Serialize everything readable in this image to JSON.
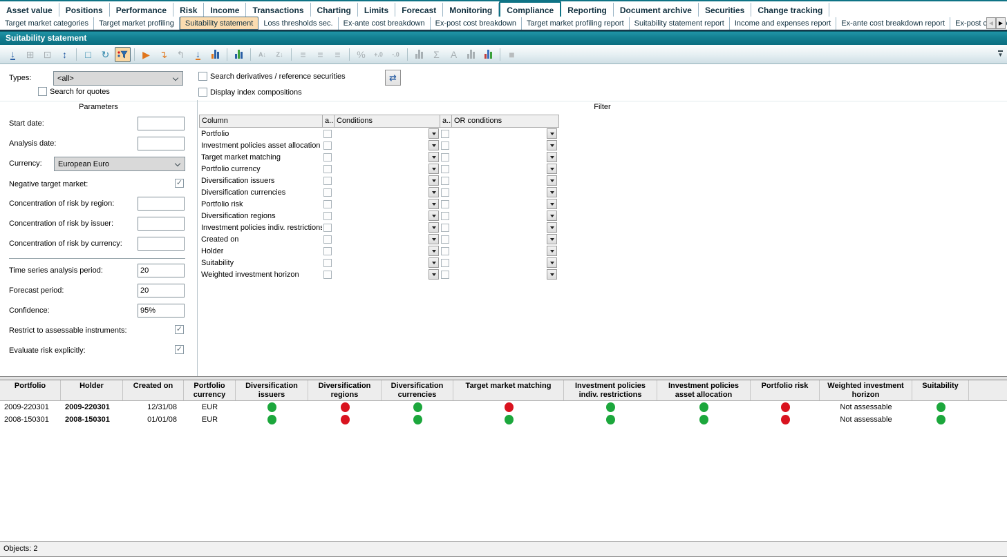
{
  "title": "Suitability statement",
  "main_tabs": {
    "selected": "Compliance",
    "items": [
      "Asset value",
      "Positions",
      "Performance",
      "Risk",
      "Income",
      "Transactions",
      "Charting",
      "Limits",
      "Forecast",
      "Monitoring",
      "Compliance",
      "Reporting",
      "Document archive",
      "Securities",
      "Change tracking"
    ]
  },
  "sub_tabs": {
    "selected": "Suitability statement",
    "items": [
      "Target market categories",
      "Target market profiling",
      "Suitability statement",
      "Loss thresholds sec.",
      "Ex-ante cost breakdown",
      "Ex-post cost breakdown",
      "Target market profiling report",
      "Suitability statement report",
      "Income and expenses report",
      "Ex-ante cost breakdown report",
      "Ex-post cost bre"
    ],
    "scroll_left_icon": "chevron-left",
    "scroll_right_icon": "chevron-right"
  },
  "toolbar": {
    "icons": [
      {
        "name": "export-icon",
        "glyph": "↓",
        "color": "#2a5fa5",
        "underline": "blue",
        "state": "enabled"
      },
      {
        "name": "maximize-icon",
        "glyph": "⊞",
        "color": "#a8b0b4",
        "state": "disabled"
      },
      {
        "name": "restore-icon",
        "glyph": "⊡",
        "color": "#a8b0b4",
        "state": "disabled"
      },
      {
        "name": "fit-height-icon",
        "glyph": "↕",
        "color": "#2a5fa5",
        "state": "enabled"
      },
      {
        "sep": true
      },
      {
        "name": "new-layout-icon",
        "glyph": "□",
        "color": "#2e86ab",
        "state": "enabled"
      },
      {
        "name": "refresh-icon",
        "glyph": "↻",
        "color": "#2e86ab",
        "state": "enabled"
      },
      {
        "name": "filter-icon",
        "type": "funnel",
        "state": "active"
      },
      {
        "sep": true
      },
      {
        "name": "step-forward-icon",
        "glyph": "▶",
        "color": "#e0761c",
        "state": "enabled"
      },
      {
        "name": "step-into-icon",
        "glyph": "↴",
        "color": "#e0761c",
        "state": "enabled"
      },
      {
        "name": "step-out-icon",
        "glyph": "↰",
        "color": "#a8b0b4",
        "state": "disabled"
      },
      {
        "name": "drilldown-icon",
        "glyph": "↓",
        "color": "#2a5fa5",
        "underline": "orange",
        "state": "enabled"
      },
      {
        "name": "chart-drill-icon",
        "type": "bars",
        "bar_colors": [
          "#e0761c",
          "#2a5fa5",
          "#2a5fa5"
        ],
        "state": "enabled"
      },
      {
        "sep": true
      },
      {
        "name": "distribution-icon",
        "type": "bars",
        "bar_colors": [
          "#2a5fa5",
          "#3aa03a",
          "#2a5fa5"
        ],
        "state": "enabled"
      },
      {
        "sep": true
      },
      {
        "name": "sort-asc-icon",
        "glyph": "A↓",
        "color": "#a8b0b4",
        "small": true,
        "state": "disabled"
      },
      {
        "name": "sort-desc-icon",
        "glyph": "Z↓",
        "color": "#a8b0b4",
        "small": true,
        "state": "disabled"
      },
      {
        "sep": true
      },
      {
        "name": "align-left-icon",
        "glyph": "≡",
        "color": "#a8b0b4",
        "state": "disabled"
      },
      {
        "name": "align-center-icon",
        "glyph": "≡",
        "color": "#a8b0b4",
        "state": "disabled"
      },
      {
        "name": "align-right-icon",
        "glyph": "≡",
        "color": "#a8b0b4",
        "state": "disabled"
      },
      {
        "sep": true
      },
      {
        "name": "percent-icon",
        "glyph": "%",
        "color": "#a8b0b4",
        "state": "disabled"
      },
      {
        "name": "add-decimals-icon",
        "glyph": "+.0",
        "color": "#a8b0b4",
        "small": true,
        "state": "disabled"
      },
      {
        "name": "remove-decimals-icon",
        "glyph": "-.0",
        "color": "#a8b0b4",
        "small": true,
        "state": "disabled"
      },
      {
        "sep": true
      },
      {
        "name": "row-bars-icon",
        "type": "bars",
        "bar_colors": [
          "#a8b0b4",
          "#a8b0b4",
          "#a8b0b4"
        ],
        "state": "disabled"
      },
      {
        "name": "sum-icon",
        "glyph": "Σ",
        "color": "#a8b0b4",
        "state": "disabled"
      },
      {
        "name": "font-icon",
        "glyph": "A",
        "color": "#a8b0b4",
        "state": "disabled"
      },
      {
        "name": "bars-icon",
        "type": "bars",
        "bar_colors": [
          "#a8b0b4",
          "#a8b0b4",
          "#a8b0b4"
        ],
        "state": "disabled"
      },
      {
        "name": "chart-icon",
        "type": "bars",
        "bar_colors": [
          "#c04040",
          "#3a6fbf",
          "#3aa03a"
        ],
        "state": "enabled"
      },
      {
        "sep": true
      },
      {
        "name": "stop-icon",
        "glyph": "■",
        "color": "#b8bcbe",
        "state": "disabled"
      }
    ],
    "overflow_icon": "toolbar-overflow-chevron"
  },
  "search_form": {
    "types_label": "Types:",
    "types_value": "<all>",
    "search_quotes_label": "Search for quotes",
    "search_quotes_checked": false,
    "search_derivatives_label": "Search derivatives / reference securities",
    "search_derivatives_checked": false,
    "display_index_label": "Display index compositions",
    "display_index_checked": false,
    "refresh_button_icon": "refresh-arrows"
  },
  "parameters": {
    "heading": "Parameters",
    "fields": [
      {
        "label": "Start date:",
        "control": "input",
        "value": ""
      },
      {
        "label": "Analysis date:",
        "control": "input",
        "value": ""
      },
      {
        "label": "Currency:",
        "control": "combo",
        "value": "European Euro"
      },
      {
        "label": "Negative target market:",
        "control": "checkbox",
        "checked": true
      },
      {
        "label": "Concentration of risk by region:",
        "control": "input",
        "value": ""
      },
      {
        "label": "Concentration of risk by issuer:",
        "control": "input",
        "value": ""
      },
      {
        "label": "Concentration of risk by currency:",
        "control": "input",
        "value": ""
      },
      {
        "divider": true
      },
      {
        "label": "Time series analysis period:",
        "control": "input",
        "value": "20"
      },
      {
        "label": "Forecast period:",
        "control": "input",
        "value": "20"
      },
      {
        "label": "Confidence:",
        "control": "input",
        "value": "95%"
      },
      {
        "label": "Restrict to assessable instruments:",
        "control": "checkbox",
        "checked": true
      },
      {
        "label": "Evaluate risk explicitly:",
        "control": "checkbox",
        "checked": true
      }
    ]
  },
  "filter": {
    "heading": "Filter",
    "headers": [
      "Column",
      "a..",
      "Conditions",
      "a..",
      "OR conditions"
    ],
    "rows": [
      "Portfolio",
      "Investment policies asset allocation",
      "Target market matching",
      "Portfolio currency",
      "Diversification issuers",
      "Diversification currencies",
      "Portfolio risk",
      "Diversification regions",
      "Investment policies indiv. restrictions",
      "Created on",
      "Holder",
      "Suitability",
      "Weighted investment horizon"
    ]
  },
  "results": {
    "columns": [
      {
        "key": "portfolio",
        "label": "Portfolio",
        "type": "text",
        "align": "left"
      },
      {
        "key": "holder",
        "label": "Holder",
        "type": "text",
        "align": "left",
        "bold": true
      },
      {
        "key": "created_on",
        "label": "Created on",
        "type": "text",
        "align": "right"
      },
      {
        "key": "portfolio_currency",
        "label": "Portfolio currency",
        "type": "text",
        "align": "center"
      },
      {
        "key": "diversification_issuers",
        "label": "Diversification issuers",
        "type": "status"
      },
      {
        "key": "diversification_regions",
        "label": "Diversification regions",
        "type": "status"
      },
      {
        "key": "diversification_currencies",
        "label": "Diversification currencies",
        "type": "status"
      },
      {
        "key": "target_market_matching",
        "label": "Target market matching",
        "type": "status"
      },
      {
        "key": "inv_policies_indiv_restrictions",
        "label": "Investment policies indiv. restrictions",
        "type": "status"
      },
      {
        "key": "inv_policies_asset_allocation",
        "label": "Investment policies asset allocation",
        "type": "status"
      },
      {
        "key": "portfolio_risk",
        "label": "Portfolio risk",
        "type": "status"
      },
      {
        "key": "weighted_investment_horizon",
        "label": "Weighted investment horizon",
        "type": "text",
        "align": "center"
      },
      {
        "key": "suitability",
        "label": "Suitability",
        "type": "status"
      }
    ],
    "rows": [
      {
        "portfolio": "2009-220301",
        "holder": "2009-220301",
        "created_on": "12/31/08",
        "portfolio_currency": "EUR",
        "diversification_issuers": "green",
        "diversification_regions": "red",
        "diversification_currencies": "green",
        "target_market_matching": "red",
        "inv_policies_indiv_restrictions": "green",
        "inv_policies_asset_allocation": "green",
        "portfolio_risk": "red",
        "weighted_investment_horizon": "Not assessable",
        "suitability": "green"
      },
      {
        "portfolio": "2008-150301",
        "holder": "2008-150301",
        "created_on": "01/01/08",
        "portfolio_currency": "EUR",
        "diversification_issuers": "green",
        "diversification_regions": "red",
        "diversification_currencies": "green",
        "target_market_matching": "green",
        "inv_policies_indiv_restrictions": "green",
        "inv_policies_asset_allocation": "green",
        "portfolio_risk": "red",
        "weighted_investment_horizon": "Not assessable",
        "suitability": "green"
      }
    ]
  },
  "status_bar": {
    "text": "Objects: 2"
  },
  "colors": {
    "green": "#1CA73C",
    "red": "#D9131F",
    "accent": "#0E7385",
    "tab_highlight": "#FBDCB0"
  }
}
